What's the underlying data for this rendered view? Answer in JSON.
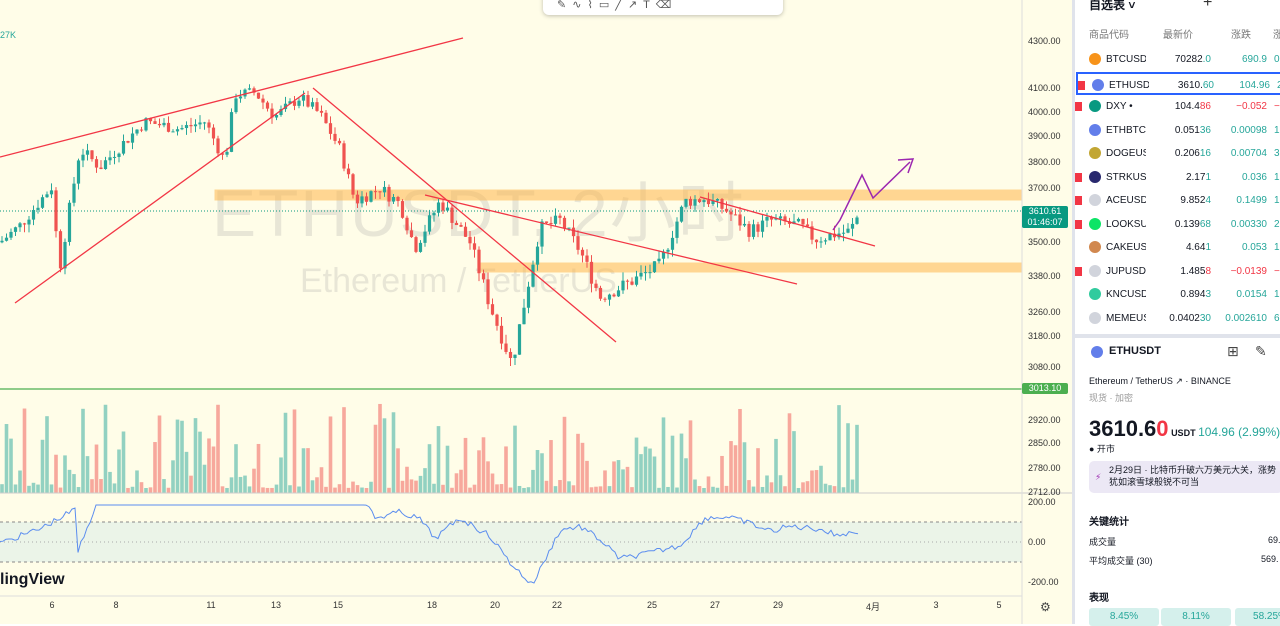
{
  "chart": {
    "watermark_symbol": "ETHUSDT, 2小时",
    "watermark_name": "Ethereum / TetherUS",
    "volume_label": "27K",
    "logo": "lingView",
    "toolbar_icons": [
      "pen-icon",
      "path-icon",
      "brush-icon",
      "rectangle-icon",
      "line-icon",
      "arrow-icon",
      "text-icon",
      "eraser-icon"
    ],
    "price_scale": "log",
    "price_labels": [
      "4300.00",
      "4100.00",
      "4000.00",
      "3900.00",
      "3800.00",
      "3700.00",
      "3500.00",
      "3380.00",
      "3260.00",
      "3180.00",
      "3080.00",
      "2920.00",
      "2850.00",
      "2780.00",
      "2712.00"
    ],
    "price_label_values": [
      4300,
      4100,
      4000,
      3900,
      3800,
      3700,
      3500,
      3380,
      3260,
      3180,
      3080,
      2920,
      2850,
      2780,
      2712
    ],
    "current_price": "3610.61",
    "countdown": "01:46:07",
    "current_price_value": 3610.61,
    "horizontal_line": "3013.10",
    "horizontal_line_value": 3013.1,
    "osc_labels": [
      "200.00",
      "0.00",
      "-200.00"
    ],
    "time_labels": [
      "6",
      "8",
      "11",
      "13",
      "15",
      "18",
      "20",
      "22",
      "25",
      "27",
      "29",
      "4月",
      "3",
      "5"
    ],
    "colors": {
      "up": "#26a69a",
      "down": "#ef5350",
      "trendline": "#f23645",
      "zone": "#ffb74d",
      "hline": "#4caf50",
      "arrow": "#9c27b0",
      "osc": "#5b8def"
    }
  },
  "watchlist": {
    "title": "自选表 ˅",
    "columns": [
      "商品代码",
      "最新价",
      "涨跌",
      "涨"
    ],
    "rows": [
      {
        "sym": "BTCUSD",
        "price": "70282.0",
        "chg": "690.9",
        "pct": "0.",
        "dir": "up",
        "flag": false,
        "icon": "#f7931a"
      },
      {
        "sym": "ETHUSD",
        "price": "3610.60",
        "chg": "104.96",
        "pct": "2.",
        "dir": "up",
        "flag": true,
        "icon": "#627eea",
        "selected": true
      },
      {
        "sym": "DXY •",
        "price": "104.486",
        "chg": "−0.052",
        "pct": "−0.",
        "dir": "dn",
        "flag": true,
        "icon": "#089981"
      },
      {
        "sym": "ETHBTC",
        "price": "0.05136",
        "chg": "0.00098",
        "pct": "1.",
        "dir": "up",
        "flag": false,
        "icon": "#627eea"
      },
      {
        "sym": "DOGEUSD",
        "price": "0.20616",
        "chg": "0.00704",
        "pct": "3.",
        "dir": "up",
        "flag": false,
        "icon": "#c2a633"
      },
      {
        "sym": "STRKUSD",
        "price": "2.171",
        "chg": "0.036",
        "pct": "1.",
        "dir": "up",
        "flag": true,
        "icon": "#29296e"
      },
      {
        "sym": "ACEUSD",
        "price": "9.8524",
        "chg": "0.1499",
        "pct": "1.",
        "dir": "up",
        "flag": true,
        "icon": "#d1d4dc"
      },
      {
        "sym": "LOOKSUSD",
        "price": "0.13968",
        "chg": "0.00330",
        "pct": "2.",
        "dir": "up",
        "flag": true,
        "icon": "#0ce466"
      },
      {
        "sym": "CAKEUSD",
        "price": "4.641",
        "chg": "0.053",
        "pct": "1.",
        "dir": "up",
        "flag": false,
        "icon": "#d1884f"
      },
      {
        "sym": "JUPUSD",
        "price": "1.4858",
        "chg": "−0.0139",
        "pct": "−0.",
        "dir": "dn",
        "flag": true,
        "icon": "#d1d4dc"
      },
      {
        "sym": "KNCUSD",
        "price": "0.8943",
        "chg": "0.0154",
        "pct": "1.",
        "dir": "up",
        "flag": false,
        "icon": "#31cb9e"
      },
      {
        "sym": "MEMEUSD",
        "price": "0.040230",
        "chg": "0.002610",
        "pct": "6.",
        "dir": "up",
        "flag": false,
        "icon": "#d1d4dc"
      }
    ]
  },
  "details": {
    "symbol": "ETHUSDT",
    "name": "Ethereum / TetherUS ↗ · BINANCE",
    "type": "现货 · 加密",
    "price_main": "3610.6",
    "price_last": "0",
    "currency": "USDT",
    "change": "104.96 (2.99%)",
    "status": "● 开市",
    "news": "2月29日 · 比特币升破六万美元大关，涨势犹如滚雪球般锐不可当",
    "stats_title": "关键统计",
    "stats": [
      {
        "label": "成交量",
        "value": "69."
      },
      {
        "label": "平均成交量 (30)",
        "value": "569."
      }
    ],
    "perf_title": "表现",
    "perf": [
      "8.45%",
      "8.11%",
      "58.25%"
    ]
  }
}
